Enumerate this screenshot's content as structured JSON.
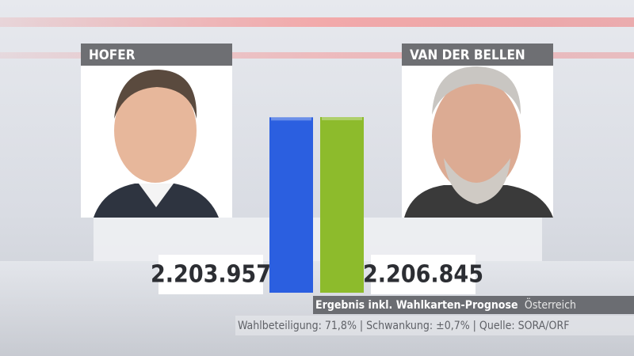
{
  "chart_data": {
    "type": "bar",
    "categories": [
      "HOFER",
      "VAN DER BELLEN"
    ],
    "values": [
      2203957,
      2206845
    ],
    "value_labels": [
      "2.203.957",
      "2.206.845"
    ],
    "colors": [
      "#2b5fe0",
      "#8dbb2c"
    ],
    "caption": "Ergebnis inkl. Wahlkarten-Prognose",
    "caption_region": "Österreich",
    "source": "Wahlbeteiligung: 71,8% | Schwankung: ±0,7% | Quelle: SORA/ORF"
  }
}
